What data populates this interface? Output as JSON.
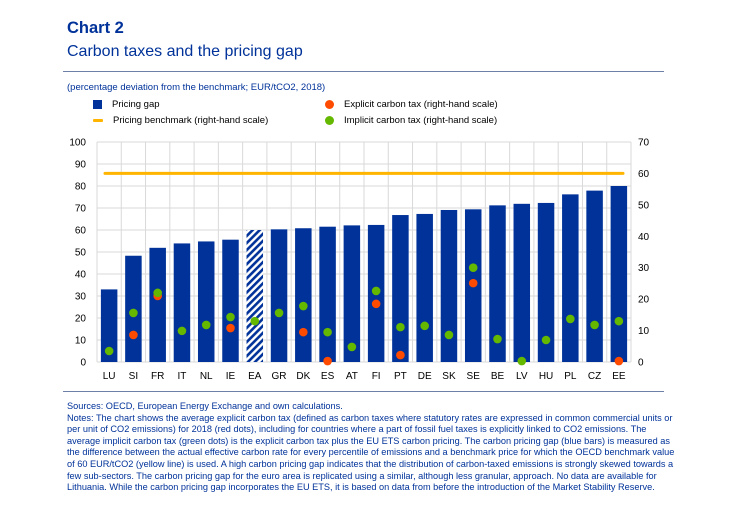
{
  "header": {
    "chart_label": "Chart 2",
    "title": "Carbon taxes and the pricing gap",
    "subtitle": "(percentage deviation from the benchmark; EUR/tCO2, 2018)"
  },
  "legend": [
    {
      "label": "Pricing gap",
      "kind": "square",
      "color": "#003299"
    },
    {
      "label": "Pricing benchmark (right-hand scale)",
      "kind": "line",
      "color": "#ffb400"
    },
    {
      "label": "Explicit carbon tax (right-hand scale)",
      "kind": "dot",
      "color": "#ff4b00"
    },
    {
      "label": "Implicit carbon tax (right-hand scale)",
      "kind": "dot",
      "color": "#65b800"
    }
  ],
  "colors": {
    "bar": "#003299",
    "benchmark": "#ffb400",
    "explicit": "#ff4b00",
    "implicit": "#65b800",
    "grid": "#d9d9d9",
    "hatch_bg": "#ffffff"
  },
  "chart_data": {
    "type": "bar",
    "title": "Carbon taxes and the pricing gap",
    "subtitle": "(percentage deviation from the benchmark; EUR/tCO2, 2018)",
    "xlabel": "",
    "ylabel": "",
    "categories": [
      "LU",
      "SI",
      "FR",
      "IT",
      "NL",
      "IE",
      "EA",
      "GR",
      "DK",
      "ES",
      "AT",
      "FI",
      "PT",
      "DE",
      "SK",
      "SE",
      "BE",
      "LV",
      "HU",
      "PL",
      "CZ",
      "EE"
    ],
    "hatched_categories": [
      "EA"
    ],
    "left_axis": {
      "ylim": [
        0,
        100
      ],
      "ticks": [
        0,
        10,
        20,
        30,
        40,
        50,
        60,
        70,
        80,
        90,
        100
      ]
    },
    "right_axis": {
      "ylim": [
        0,
        70
      ],
      "ticks": [
        0,
        10,
        20,
        30,
        40,
        50,
        60,
        70
      ]
    },
    "grid": true,
    "legend_position": "top",
    "series": [
      {
        "name": "Pricing gap",
        "type": "bar",
        "axis": "left",
        "values": [
          33,
          48.3,
          51.9,
          53.9,
          54.8,
          55.6,
          60,
          60.3,
          60.8,
          61.5,
          62.1,
          62.3,
          66.8,
          67.3,
          69.1,
          69.4,
          71.2,
          71.9,
          72.3,
          76.2,
          77.9,
          80
        ]
      },
      {
        "name": "Pricing benchmark (right-hand scale)",
        "type": "line",
        "axis": "right",
        "values": [
          60,
          60,
          60,
          60,
          60,
          60,
          60,
          60,
          60,
          60,
          60,
          60,
          60,
          60,
          60,
          60,
          60,
          60,
          60,
          60,
          60,
          60
        ]
      },
      {
        "name": "Explicit carbon tax (right-hand scale)",
        "type": "scatter",
        "axis": "right",
        "values": [
          null,
          8.6,
          21,
          null,
          null,
          10.8,
          null,
          null,
          9.5,
          0.3,
          null,
          18.5,
          2.2,
          null,
          null,
          25.1,
          null,
          null,
          null,
          null,
          null,
          0.3
        ]
      },
      {
        "name": "Implicit carbon tax (right-hand scale)",
        "type": "scatter",
        "axis": "right",
        "values": [
          3.5,
          15.6,
          22,
          9.9,
          11.8,
          14.3,
          13,
          15.6,
          17.8,
          9.5,
          4.8,
          22.6,
          11.1,
          11.5,
          8.6,
          30,
          7.3,
          0.3,
          7,
          13.7,
          11.8,
          13
        ]
      }
    ]
  },
  "notes": {
    "sources": "Sources: OECD, European Energy Exchange and own calculations.",
    "notes": "Notes: The chart shows the average explicit carbon tax (defined as carbon taxes where statutory rates are expressed in common commercial units or per unit of CO2 emissions) for 2018 (red dots), including for countries where a part of fossil fuel taxes is explicitly linked to CO2 emissions. The average implicit carbon tax (green dots) is the explicit carbon tax plus the EU ETS carbon pricing. The carbon pricing gap (blue bars) is measured as the difference between the actual effective carbon rate for every percentile of emissions and a benchmark price for which the OECD benchmark value of 60 EUR/tCO2 (yellow line) is used. A high carbon pricing gap indicates that the distribution of carbon-taxed emissions is strongly skewed towards a few sub-sectors. The carbon pricing gap for the euro area is replicated using a similar, although less granular, approach. No data are available for Lithuania. While the carbon pricing gap incorporates the EU ETS, it is based on data from before the introduction of the Market Stability Reserve."
  }
}
